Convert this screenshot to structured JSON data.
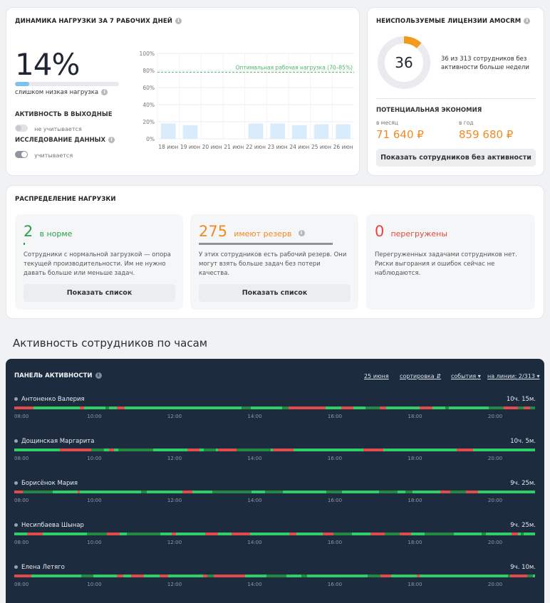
{
  "load_card": {
    "title": "ДИНАМИКА НАГРУЗКИ ЗА 7 РАБОЧИХ ДНЕЙ",
    "percent": "14%",
    "level_fraction": 0.14,
    "status": "слишком низкая нагрузка",
    "weekend_label": "АКТИВНОСТЬ В ВЫХОДНЫЕ",
    "weekend_state": "не учитывается",
    "research_label": "ИССЛЕДОВАНИЕ ДАННЫХ",
    "research_state": "учитывается",
    "chart": {
      "optimal_label": "Оптимальная рабочая нагрузка (70–85%)",
      "y_ticks": [
        "100%",
        "80%",
        "60%",
        "40%",
        "20%",
        "0%"
      ],
      "categories": [
        "18 июн",
        "19 июн",
        "20 июн",
        "21 июн",
        "22 июн",
        "23 июн",
        "24 июн",
        "25 июн",
        "26 июн"
      ],
      "values": [
        18,
        16,
        0,
        0,
        18,
        18,
        16,
        17,
        17
      ],
      "ylim": [
        0,
        100
      ],
      "optimal_line": 78
    }
  },
  "license_card": {
    "title": "НЕИСПОЛЬЗУЕМЫЕ ЛИЦЕНЗИИ AMOCRM",
    "count": "36",
    "donut_fraction": 0.115,
    "description": "36 из 313 сотрудников без активности больше недели",
    "economy_title": "ПОТЕНЦИАЛЬНАЯ ЭКОНОМИЯ",
    "month_label": "в месяц",
    "month_value": "71 640 ₽",
    "year_label": "в год",
    "year_value": "859 680 ₽",
    "button": "Показать сотрудников без активности"
  },
  "distribution": {
    "title": "РАСПРЕДЕЛЕНИЕ НАГРУЗКИ",
    "normal": {
      "count": "2",
      "label": "в норме",
      "desc": "Сотрудники с нормальной загрузкой — опора текущей производительности. Им не нужно давать больше или меньше задач.",
      "button": "Показать список",
      "color": "#2e9e4f"
    },
    "reserve": {
      "count": "275",
      "label": "имеют резерв",
      "desc": "У этих сотрудников есть рабочий резерв. Они могут взять больше задач без потери качества.",
      "button": "Показать список",
      "color": "#f08a24"
    },
    "overload": {
      "count": "0",
      "label": "перегружены",
      "desc": "Перегруженных задачами сотрудников нет. Риски выгорания и ошибок сейчас не наблюдаются.",
      "color": "#e2473f"
    }
  },
  "section_title": "Активность сотрудников по часам",
  "panel": {
    "title": "ПАНЕЛЬ АКТИВНОСТИ",
    "date": "25 июня",
    "sort": "сортировка",
    "events": "события",
    "online": "на линии: 2/313",
    "hours": [
      "08:00",
      "10:00",
      "12:00",
      "14:00",
      "16:00",
      "18:00",
      "20:00"
    ],
    "rows": [
      {
        "name": "Антоненко Валерия",
        "total": "10ч. 15м."
      },
      {
        "name": "Дощинская Маргарита",
        "total": "10ч. 5м."
      },
      {
        "name": "Борисёнок Мария",
        "total": "9ч. 25м."
      },
      {
        "name": "Несипбаева Шынар",
        "total": "9ч. 25м."
      },
      {
        "name": "Елена Летяго",
        "total": "9ч. 10м."
      }
    ]
  }
}
